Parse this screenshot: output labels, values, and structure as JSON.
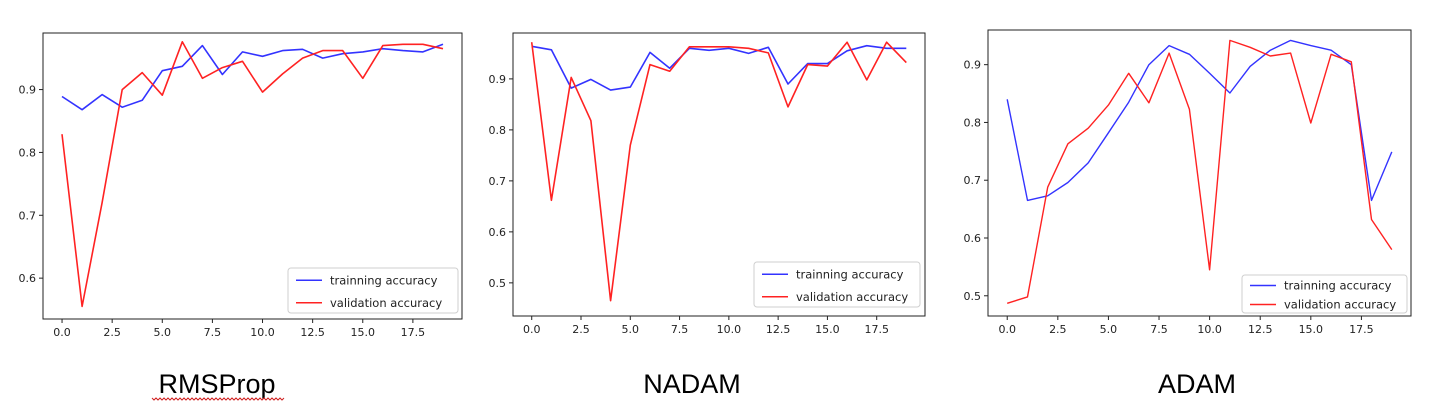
{
  "chart_data": [
    {
      "type": "line",
      "caption": "RMSProp",
      "x": [
        0,
        1,
        2,
        3,
        4,
        5,
        6,
        7,
        8,
        9,
        10,
        11,
        12,
        13,
        14,
        15,
        16,
        17,
        18,
        19
      ],
      "series": [
        {
          "name": "trainning accuracy",
          "color": "#3333ff",
          "values": [
            0.889,
            0.868,
            0.892,
            0.872,
            0.883,
            0.93,
            0.937,
            0.97,
            0.924,
            0.96,
            0.953,
            0.962,
            0.964,
            0.95,
            0.957,
            0.96,
            0.965,
            0.962,
            0.96,
            0.972
          ]
        },
        {
          "name": "validation accuracy",
          "color": "#ff2222",
          "values": [
            0.829,
            0.555,
            0.72,
            0.9,
            0.927,
            0.891,
            0.976,
            0.918,
            0.935,
            0.945,
            0.896,
            0.925,
            0.95,
            0.962,
            0.962,
            0.918,
            0.97,
            0.972,
            0.972,
            0.965
          ]
        }
      ],
      "xlim": [
        -0.95,
        19.95
      ],
      "ylim": [
        0.535,
        0.99
      ],
      "xticks": [
        0.0,
        2.5,
        5.0,
        7.5,
        10.0,
        12.5,
        15.0,
        17.5
      ],
      "xtick_labels": [
        "0.0",
        "2.5",
        "5.0",
        "7.5",
        "10.0",
        "12.5",
        "15.0",
        "17.5"
      ],
      "yticks": [
        0.6,
        0.7,
        0.8,
        0.9
      ],
      "ytick_labels": [
        "0.6",
        "0.7",
        "0.8",
        "0.9"
      ],
      "legend": "lower-right",
      "grid": false
    },
    {
      "type": "line",
      "caption": "NADAM",
      "x": [
        0,
        1,
        2,
        3,
        4,
        5,
        6,
        7,
        8,
        9,
        10,
        11,
        12,
        13,
        14,
        15,
        16,
        17,
        18,
        19
      ],
      "series": [
        {
          "name": "trainning accuracy",
          "color": "#3333ff",
          "values": [
            0.964,
            0.957,
            0.882,
            0.899,
            0.878,
            0.884,
            0.952,
            0.921,
            0.96,
            0.956,
            0.96,
            0.95,
            0.962,
            0.89,
            0.93,
            0.93,
            0.955,
            0.965,
            0.96,
            0.96
          ]
        },
        {
          "name": "validation accuracy",
          "color": "#ff2222",
          "values": [
            0.972,
            0.662,
            0.903,
            0.818,
            0.465,
            0.77,
            0.928,
            0.915,
            0.963,
            0.963,
            0.963,
            0.96,
            0.951,
            0.845,
            0.928,
            0.925,
            0.972,
            0.898,
            0.972,
            0.932
          ]
        }
      ],
      "xlim": [
        -0.95,
        19.95
      ],
      "ylim": [
        0.435,
        0.99
      ],
      "xticks": [
        0.0,
        2.5,
        5.0,
        7.5,
        10.0,
        12.5,
        15.0,
        17.5
      ],
      "xtick_labels": [
        "0.0",
        "2.5",
        "5.0",
        "7.5",
        "10.0",
        "12.5",
        "15.0",
        "17.5"
      ],
      "yticks": [
        0.5,
        0.6,
        0.7,
        0.8,
        0.9
      ],
      "ytick_labels": [
        "0.5",
        "0.6",
        "0.7",
        "0.8",
        "0.9"
      ],
      "legend": "lower-right",
      "grid": false
    },
    {
      "type": "line",
      "caption": "ADAM",
      "x": [
        0,
        1,
        2,
        3,
        4,
        5,
        6,
        7,
        8,
        9,
        10,
        11,
        12,
        13,
        14,
        15,
        16,
        17,
        18,
        19
      ],
      "series": [
        {
          "name": "trainning accuracy",
          "color": "#3333ff",
          "values": [
            0.84,
            0.665,
            0.673,
            0.696,
            0.73,
            0.782,
            0.835,
            0.9,
            0.933,
            0.918,
            0.885,
            0.851,
            0.897,
            0.925,
            0.942,
            0.933,
            0.925,
            0.9,
            0.665,
            0.749
          ]
        },
        {
          "name": "validation accuracy",
          "color": "#ff2222",
          "values": [
            0.487,
            0.498,
            0.688,
            0.763,
            0.79,
            0.83,
            0.885,
            0.834,
            0.92,
            0.823,
            0.545,
            0.942,
            0.93,
            0.915,
            0.92,
            0.799,
            0.918,
            0.905,
            0.632,
            0.58
          ]
        }
      ],
      "xlim": [
        -0.95,
        19.95
      ],
      "ylim": [
        0.465,
        0.96
      ],
      "xticks": [
        0.0,
        2.5,
        5.0,
        7.5,
        10.0,
        12.5,
        15.0,
        17.5
      ],
      "xtick_labels": [
        "0.0",
        "2.5",
        "5.0",
        "7.5",
        "10.0",
        "12.5",
        "15.0",
        "17.5"
      ],
      "yticks": [
        0.5,
        0.6,
        0.7,
        0.8,
        0.9
      ],
      "ytick_labels": [
        "0.5",
        "0.6",
        "0.7",
        "0.8",
        "0.9"
      ],
      "legend": "lower-right",
      "grid": false
    }
  ]
}
